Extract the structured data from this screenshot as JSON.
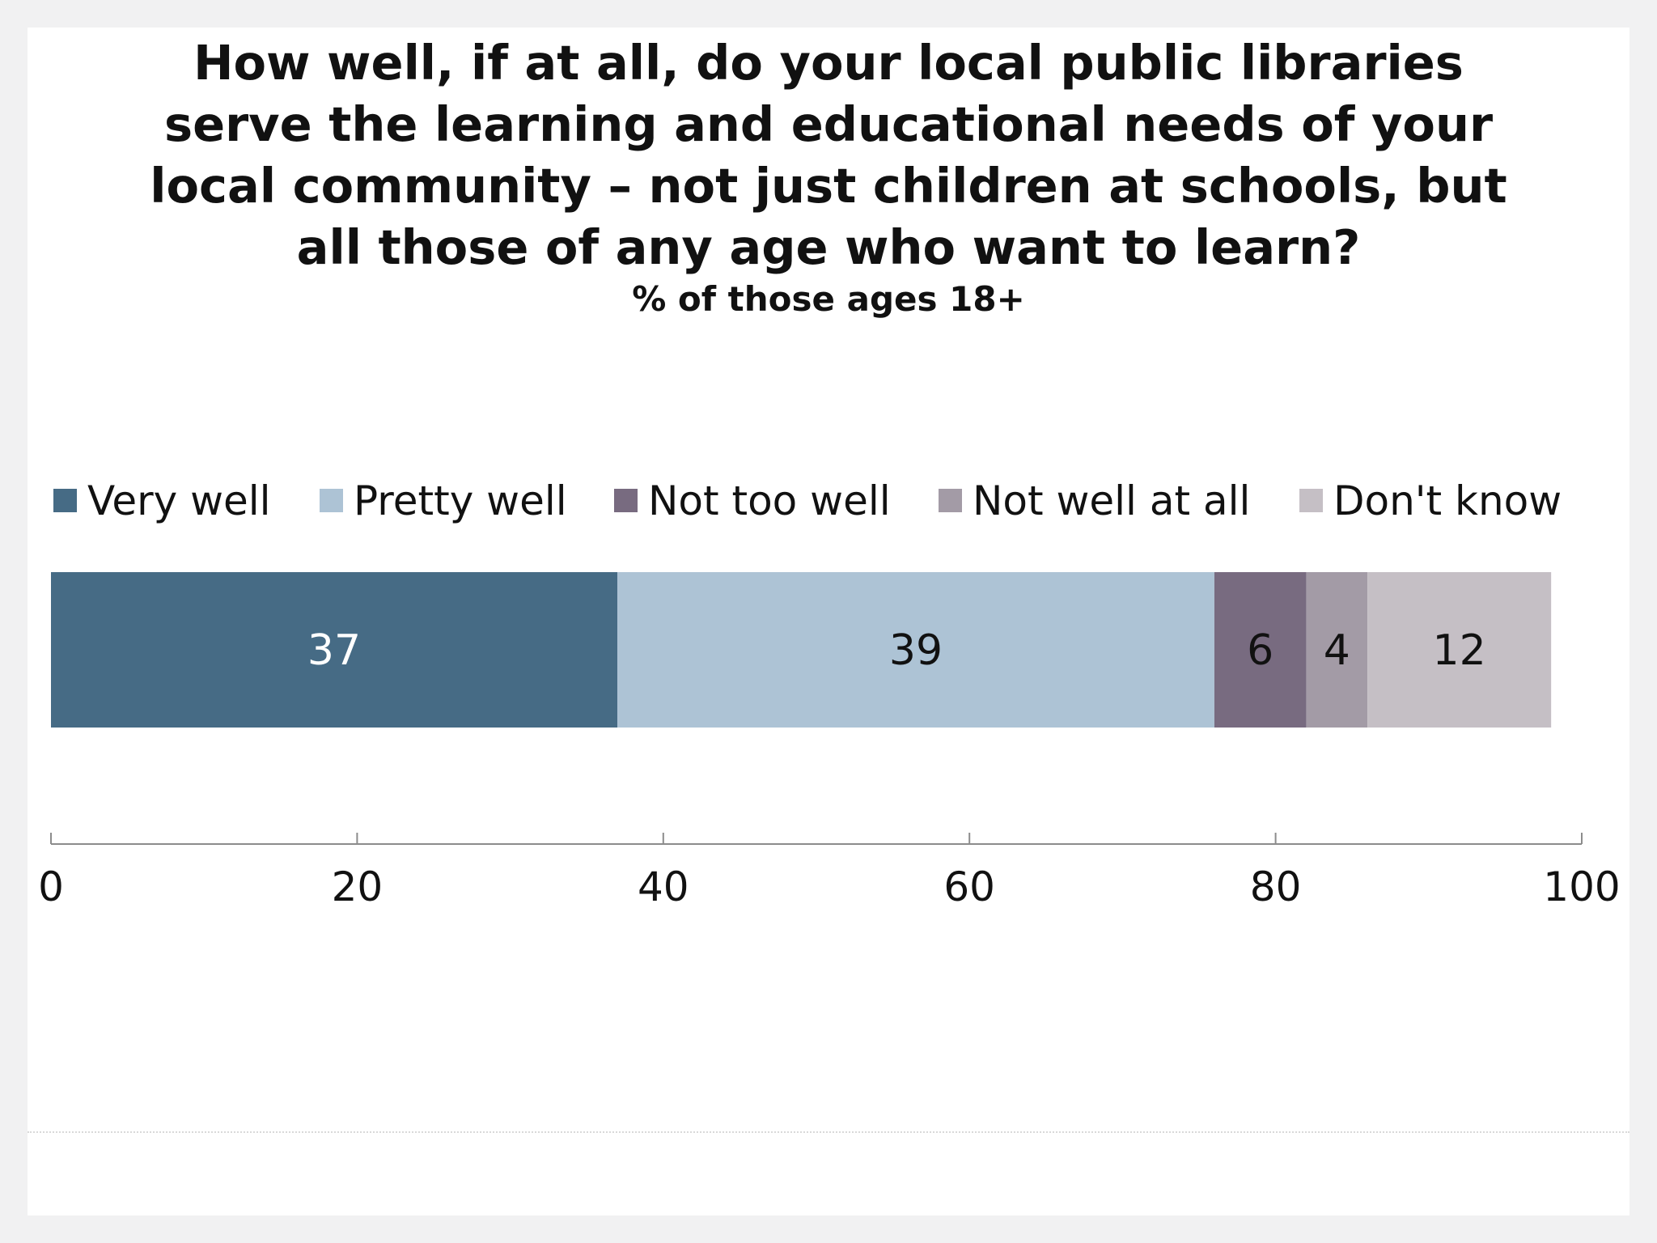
{
  "chart_data": {
    "type": "bar",
    "orientation": "horizontal",
    "stacked": true,
    "title_lines": [
      "How well, if at all, do your local public libraries",
      "serve the learning and educational needs of your",
      "local community – not just children at schools, but",
      "all those of any age who want to learn?"
    ],
    "subtitle": "% of those ages 18+",
    "xlim": [
      0,
      100
    ],
    "x_ticks": [
      0,
      20,
      40,
      60,
      80,
      100
    ],
    "legend_position": "top",
    "grid": false,
    "series": [
      {
        "name": "Very well",
        "value": 37,
        "color": "#466b85",
        "label_color": "#ffffff"
      },
      {
        "name": "Pretty well",
        "value": 39,
        "color": "#adc3d5",
        "label_color": "#111111"
      },
      {
        "name": "Not too well",
        "value": 6,
        "color": "#786b80",
        "label_color": "#111111"
      },
      {
        "name": "Not well at all",
        "value": 4,
        "color": "#a39ba6",
        "label_color": "#111111"
      },
      {
        "name": "Don't know",
        "value": 12,
        "color": "#c5bfc5",
        "label_color": "#111111"
      }
    ]
  }
}
